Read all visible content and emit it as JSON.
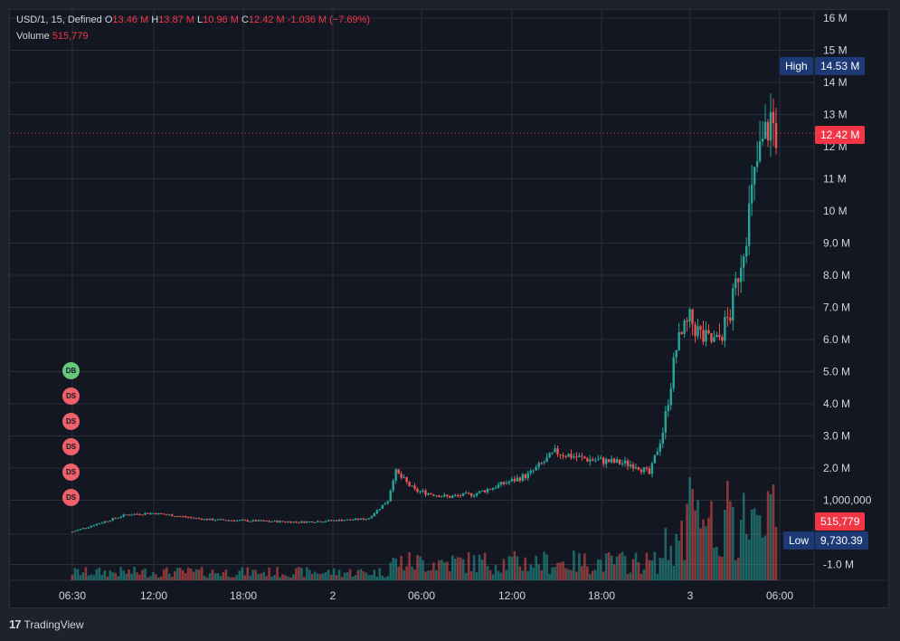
{
  "header": {
    "symbol_line": "USD/1, 15, Defined",
    "o_label": "O",
    "o_value": "13.46 M",
    "h_label": "H",
    "h_value": "13.87 M",
    "l_label": "L",
    "l_value": "10.96 M",
    "c_label": "C",
    "c_value": "12.42 M",
    "change": "-1.036 M (−7.69%)",
    "volume_label": "Volume",
    "volume_value": "515,779"
  },
  "markers": [
    "DB",
    "DS",
    "DS",
    "DS",
    "DS",
    "DS"
  ],
  "labels": {
    "high_tag": "High",
    "high_value": "14.53 M",
    "current_value": "12.42 M",
    "volume_value": "515,779",
    "low_tag": "Low",
    "low_value": "9,730.39"
  },
  "footer": {
    "logo": "17",
    "brand": "TradingView"
  },
  "colors": {
    "up": "#26a69a",
    "down": "#ef5350",
    "grid": "#2a2e39"
  },
  "chart_data": {
    "type": "candlestick",
    "timeframe": "15",
    "price_axis_ticks": [
      "16 M",
      "15 M",
      "14 M",
      "13 M",
      "12 M",
      "11 M",
      "10 M",
      "9.0 M",
      "8.0 M",
      "7.0 M",
      "6.0 M",
      "5.0 M",
      "4.0 M",
      "3.0 M",
      "2.0 M",
      "1,000,000",
      "-1.0 M"
    ],
    "time_axis_ticks": [
      "06:30",
      "12:00",
      "18:00",
      "2",
      "06:00",
      "12:00",
      "18:00",
      "3",
      "06:00"
    ],
    "high": 14.53,
    "low": 0.0097,
    "last_close": 12.42,
    "last_volume": 515779,
    "close_path": [
      [
        0.0,
        0.02
      ],
      [
        4.0,
        0.55
      ],
      [
        6.0,
        0.6
      ],
      [
        10.0,
        0.4
      ],
      [
        14.0,
        0.35
      ],
      [
        17.0,
        0.32
      ],
      [
        20.0,
        0.38
      ],
      [
        22.0,
        0.42
      ],
      [
        23.5,
        1.0
      ],
      [
        24.0,
        1.9
      ],
      [
        25.5,
        1.3
      ],
      [
        28.0,
        1.1
      ],
      [
        30.0,
        1.2
      ],
      [
        32.0,
        1.5
      ],
      [
        34.0,
        1.8
      ],
      [
        36.0,
        2.5
      ],
      [
        38.0,
        2.3
      ],
      [
        40.0,
        2.2
      ],
      [
        42.0,
        2.1
      ],
      [
        43.0,
        1.8
      ],
      [
        44.0,
        3.2
      ],
      [
        45.0,
        5.8
      ],
      [
        46.0,
        6.6
      ],
      [
        47.0,
        6.0
      ],
      [
        48.0,
        5.9
      ],
      [
        49.0,
        6.8
      ],
      [
        50.0,
        9.0
      ],
      [
        51.0,
        11.5
      ],
      [
        52.0,
        12.9
      ],
      [
        52.4,
        12.42
      ]
    ]
  }
}
